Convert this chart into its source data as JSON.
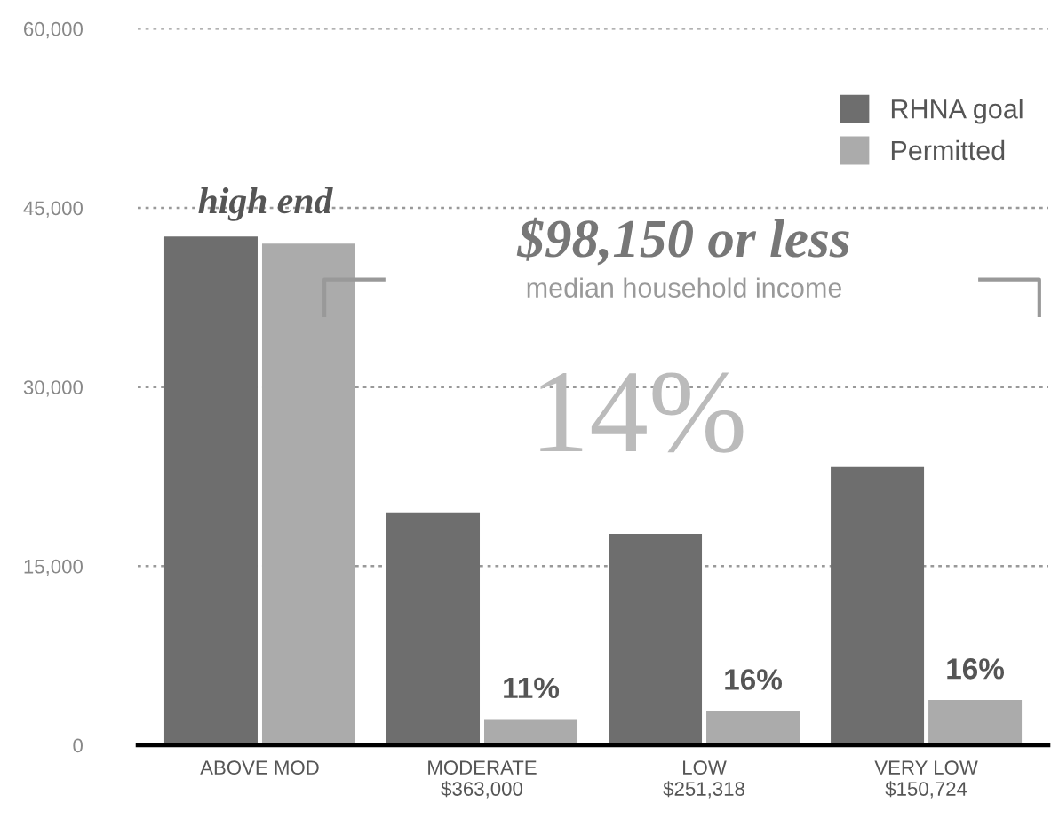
{
  "chart_data": {
    "type": "bar",
    "categories": [
      "ABOVE MOD",
      "MODERATE\n$363,000",
      "LOW\n$251,318",
      "VERY LOW\n$150,724"
    ],
    "series": [
      {
        "name": "RHNA goal",
        "color": "#6e6e6e",
        "values": [
          42600,
          19500,
          17700,
          23300
        ]
      },
      {
        "name": "Permitted",
        "color": "#ababab",
        "values": [
          42000,
          2200,
          2900,
          3800
        ]
      }
    ],
    "ylim": [
      0,
      60000
    ],
    "yticks": [
      0,
      {
        "value": 15000,
        "label": "15,000"
      },
      {
        "value": 30000,
        "label": "30,000"
      },
      {
        "value": 45000,
        "label": "45,000"
      },
      {
        "value": 60000,
        "label": "60,000"
      }
    ],
    "grid": "y",
    "legend": "top right",
    "annotations": [
      "high end",
      "$98,150 or less",
      "median household income",
      "14%",
      "11%",
      "16%",
      "16%"
    ]
  }
}
